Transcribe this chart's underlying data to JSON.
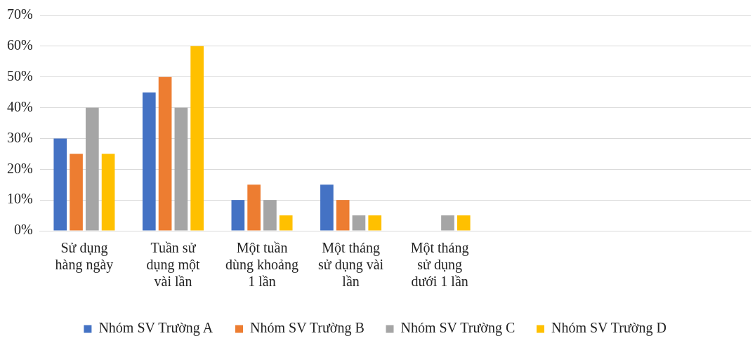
{
  "chart_data": {
    "type": "bar",
    "categories": [
      "Sử dụng\nhàng ngày",
      "Tuần sử\ndụng một\nvài lần",
      "Một tuần\ndùng khoảng\n1 lần",
      "Một tháng\nsử dụng vài\nlần",
      "Một tháng\nsử dụng\ndưới 1 lần",
      null,
      null,
      null
    ],
    "series": [
      {
        "name": "Nhóm SV Trường A",
        "color": "#4472c4",
        "values": [
          30,
          45,
          10,
          15,
          null,
          null,
          null,
          null
        ]
      },
      {
        "name": "Nhóm SV Trường B",
        "color": "#ed7d31",
        "values": [
          25,
          50,
          15,
          10,
          null,
          null,
          null,
          null
        ]
      },
      {
        "name": "Nhóm SV Trường C",
        "color": "#a5a5a5",
        "values": [
          40,
          40,
          10,
          5,
          5,
          null,
          null,
          null
        ]
      },
      {
        "name": "Nhóm SV Trường D",
        "color": "#ffc000",
        "values": [
          25,
          60,
          5,
          5,
          5,
          null,
          null,
          null
        ]
      }
    ],
    "ylim": [
      0,
      70
    ],
    "yticks": [
      {
        "value": 0,
        "label": "0%"
      },
      {
        "value": 10,
        "label": "10%"
      },
      {
        "value": 20,
        "label": "20%"
      },
      {
        "value": 30,
        "label": "30%"
      },
      {
        "value": 40,
        "label": "40%"
      },
      {
        "value": 50,
        "label": "50%"
      },
      {
        "value": 60,
        "label": "60%"
      },
      {
        "value": 70,
        "label": "70%"
      }
    ],
    "grid": "y",
    "legend": "bottom"
  }
}
